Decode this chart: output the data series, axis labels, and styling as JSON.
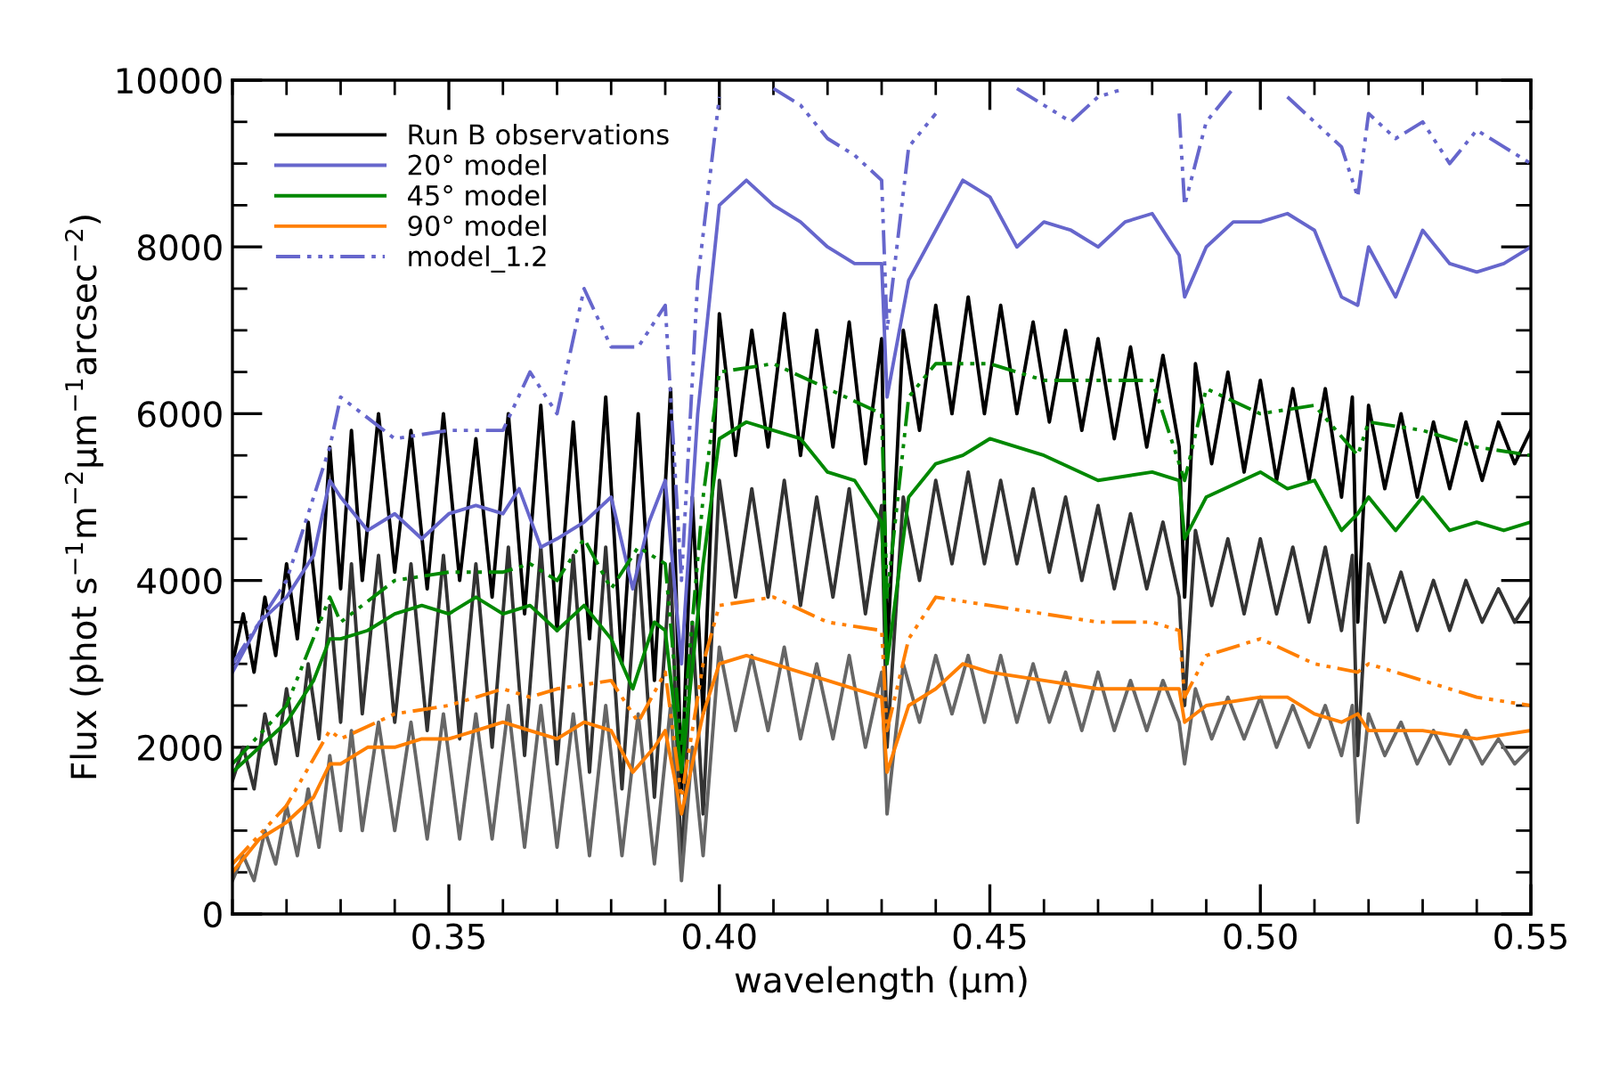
{
  "chart_data": {
    "type": "line",
    "xlabel": "wavelength (μm)",
    "ylabel": "Flux (phot s$^{−1}$m$^{−2}$μm$^{−1}$arcsec$^{−2}$)",
    "xlim": [
      0.31,
      0.55
    ],
    "ylim": [
      0,
      10000
    ],
    "xticks": [
      {
        "value": 0.35,
        "label": "0.35"
      },
      {
        "value": 0.4,
        "label": "0.40"
      },
      {
        "value": 0.45,
        "label": "0.45"
      },
      {
        "value": 0.5,
        "label": "0.50"
      },
      {
        "value": 0.55,
        "label": "0.55"
      }
    ],
    "yticks": [
      0,
      2000,
      4000,
      6000,
      8000,
      10000
    ],
    "grid": false,
    "legend": "top left",
    "marker": "none",
    "series": [
      {
        "name": "Run B observations",
        "color": "#000000",
        "line_style": "solid",
        "x": [
          0.31,
          0.312,
          0.314,
          0.316,
          0.318,
          0.32,
          0.322,
          0.324,
          0.326,
          0.328,
          0.33,
          0.332,
          0.334,
          0.337,
          0.34,
          0.343,
          0.346,
          0.349,
          0.352,
          0.355,
          0.358,
          0.361,
          0.364,
          0.367,
          0.37,
          0.373,
          0.376,
          0.379,
          0.382,
          0.385,
          0.388,
          0.391,
          0.393,
          0.395,
          0.397,
          0.4,
          0.403,
          0.406,
          0.409,
          0.412,
          0.415,
          0.418,
          0.421,
          0.424,
          0.427,
          0.43,
          0.431,
          0.434,
          0.437,
          0.44,
          0.443,
          0.446,
          0.449,
          0.452,
          0.455,
          0.458,
          0.461,
          0.464,
          0.467,
          0.47,
          0.473,
          0.476,
          0.479,
          0.482,
          0.485,
          0.486,
          0.488,
          0.491,
          0.494,
          0.497,
          0.5,
          0.503,
          0.506,
          0.509,
          0.512,
          0.515,
          0.517,
          0.518,
          0.52,
          0.523,
          0.526,
          0.529,
          0.532,
          0.535,
          0.538,
          0.541,
          0.544,
          0.547,
          0.55
        ],
        "values": [
          3000,
          3600,
          2900,
          3800,
          3100,
          4200,
          3300,
          4700,
          3500,
          5600,
          3900,
          5800,
          4000,
          6000,
          4100,
          5800,
          3900,
          6000,
          4000,
          5700,
          3800,
          6000,
          3600,
          6100,
          3400,
          5900,
          3300,
          6200,
          3000,
          6000,
          2800,
          6300,
          1500,
          5000,
          2400,
          7200,
          5500,
          7000,
          5600,
          7200,
          5500,
          7000,
          5600,
          7100,
          5400,
          6900,
          3100,
          7000,
          5800,
          7300,
          6000,
          7400,
          6000,
          7300,
          6000,
          7100,
          5900,
          7000,
          5800,
          6900,
          5700,
          6800,
          5600,
          6700,
          5600,
          3800,
          6600,
          5400,
          6500,
          5300,
          6400,
          5200,
          6300,
          5200,
          6300,
          5000,
          6200,
          3500,
          6100,
          5100,
          6000,
          5000,
          5900,
          5100,
          5900,
          5200,
          5900,
          5400,
          5800
        ]
      },
      {
        "color": "#333333",
        "line_style": "solid",
        "x": [
          0.31,
          0.312,
          0.314,
          0.316,
          0.318,
          0.32,
          0.322,
          0.324,
          0.326,
          0.328,
          0.33,
          0.332,
          0.334,
          0.337,
          0.34,
          0.343,
          0.346,
          0.349,
          0.352,
          0.355,
          0.358,
          0.361,
          0.364,
          0.367,
          0.37,
          0.373,
          0.376,
          0.379,
          0.382,
          0.385,
          0.388,
          0.391,
          0.393,
          0.395,
          0.397,
          0.4,
          0.403,
          0.406,
          0.409,
          0.412,
          0.415,
          0.418,
          0.421,
          0.424,
          0.427,
          0.43,
          0.431,
          0.434,
          0.437,
          0.44,
          0.443,
          0.446,
          0.449,
          0.452,
          0.455,
          0.458,
          0.461,
          0.464,
          0.467,
          0.47,
          0.473,
          0.476,
          0.479,
          0.482,
          0.485,
          0.486,
          0.488,
          0.491,
          0.494,
          0.497,
          0.5,
          0.503,
          0.506,
          0.509,
          0.512,
          0.515,
          0.517,
          0.518,
          0.52,
          0.523,
          0.526,
          0.529,
          0.532,
          0.535,
          0.538,
          0.541,
          0.544,
          0.547,
          0.55
        ],
        "values": [
          1600,
          2000,
          1500,
          2400,
          1800,
          2700,
          1900,
          3000,
          2100,
          3700,
          2300,
          4200,
          2400,
          4300,
          2300,
          4200,
          2200,
          4300,
          2100,
          4200,
          2000,
          4400,
          1900,
          4400,
          1800,
          4300,
          1700,
          4400,
          1500,
          4300,
          1400,
          4200,
          500,
          3500,
          1200,
          5200,
          3800,
          5100,
          3800,
          5200,
          3700,
          5000,
          3800,
          5100,
          3600,
          4900,
          2000,
          5000,
          4000,
          5200,
          4200,
          5300,
          4200,
          5200,
          4200,
          5100,
          4100,
          5000,
          4000,
          4900,
          3900,
          4800,
          3900,
          4700,
          3800,
          2500,
          4600,
          3700,
          4500,
          3600,
          4500,
          3600,
          4400,
          3500,
          4400,
          3400,
          4300,
          1900,
          4200,
          3500,
          4100,
          3400,
          4000,
          3400,
          4000,
          3500,
          3900,
          3500,
          3800
        ]
      },
      {
        "color": "#666666",
        "line_style": "solid",
        "x": [
          0.31,
          0.312,
          0.314,
          0.316,
          0.318,
          0.32,
          0.322,
          0.324,
          0.326,
          0.328,
          0.33,
          0.332,
          0.334,
          0.337,
          0.34,
          0.343,
          0.346,
          0.349,
          0.352,
          0.355,
          0.358,
          0.361,
          0.364,
          0.367,
          0.37,
          0.373,
          0.376,
          0.379,
          0.382,
          0.385,
          0.388,
          0.391,
          0.393,
          0.395,
          0.397,
          0.4,
          0.403,
          0.406,
          0.409,
          0.412,
          0.415,
          0.418,
          0.421,
          0.424,
          0.427,
          0.43,
          0.431,
          0.434,
          0.437,
          0.44,
          0.443,
          0.446,
          0.449,
          0.452,
          0.455,
          0.458,
          0.461,
          0.464,
          0.467,
          0.47,
          0.473,
          0.476,
          0.479,
          0.482,
          0.485,
          0.486,
          0.488,
          0.491,
          0.494,
          0.497,
          0.5,
          0.503,
          0.506,
          0.509,
          0.512,
          0.515,
          0.517,
          0.518,
          0.52,
          0.523,
          0.526,
          0.529,
          0.532,
          0.535,
          0.538,
          0.541,
          0.544,
          0.547,
          0.55
        ],
        "values": [
          400,
          700,
          400,
          1000,
          600,
          1300,
          700,
          1500,
          800,
          1900,
          1000,
          2200,
          1000,
          2300,
          1000,
          2300,
          900,
          2400,
          900,
          2400,
          900,
          2500,
          800,
          2500,
          800,
          2400,
          700,
          2500,
          700,
          2400,
          600,
          2500,
          400,
          2000,
          700,
          3200,
          2200,
          3100,
          2200,
          3200,
          2100,
          3000,
          2100,
          3100,
          2000,
          2900,
          1200,
          3000,
          2300,
          3100,
          2400,
          3100,
          2300,
          3100,
          2300,
          3000,
          2300,
          2900,
          2200,
          2900,
          2200,
          2800,
          2200,
          2800,
          2300,
          1800,
          2700,
          2100,
          2600,
          2100,
          2600,
          2000,
          2500,
          2000,
          2500,
          1900,
          2500,
          1100,
          2400,
          1900,
          2300,
          1800,
          2200,
          1800,
          2200,
          1800,
          2100,
          1800,
          2000
        ]
      },
      {
        "name": "20° model",
        "color": "#6666cc",
        "line_style": "solid",
        "x": [
          0.31,
          0.315,
          0.32,
          0.325,
          0.328,
          0.33,
          0.335,
          0.34,
          0.345,
          0.35,
          0.355,
          0.36,
          0.363,
          0.367,
          0.37,
          0.375,
          0.38,
          0.384,
          0.387,
          0.39,
          0.393,
          0.396,
          0.4,
          0.405,
          0.41,
          0.415,
          0.42,
          0.425,
          0.43,
          0.431,
          0.435,
          0.44,
          0.445,
          0.45,
          0.455,
          0.46,
          0.465,
          0.47,
          0.475,
          0.48,
          0.485,
          0.486,
          0.49,
          0.495,
          0.5,
          0.505,
          0.51,
          0.515,
          0.518,
          0.52,
          0.525,
          0.53,
          0.535,
          0.54,
          0.545,
          0.55
        ],
        "values": [
          2900,
          3500,
          3800,
          4300,
          5200,
          5000,
          4600,
          4800,
          4500,
          4800,
          4900,
          4800,
          5100,
          4400,
          4500,
          4700,
          5000,
          3900,
          4700,
          5200,
          3000,
          6000,
          8500,
          8800,
          8500,
          8300,
          8000,
          7800,
          7800,
          6200,
          7600,
          8200,
          8800,
          8600,
          8000,
          8300,
          8200,
          8000,
          8300,
          8400,
          7900,
          7400,
          8000,
          8300,
          8300,
          8400,
          8200,
          7400,
          7300,
          8000,
          7400,
          8200,
          7800,
          7700,
          7800,
          8000
        ]
      },
      {
        "name": "45° model",
        "color": "#008800",
        "line_style": "solid",
        "x": [
          0.31,
          0.315,
          0.32,
          0.325,
          0.328,
          0.33,
          0.335,
          0.34,
          0.345,
          0.35,
          0.355,
          0.36,
          0.365,
          0.37,
          0.375,
          0.38,
          0.384,
          0.388,
          0.39,
          0.393,
          0.397,
          0.4,
          0.405,
          0.41,
          0.415,
          0.42,
          0.425,
          0.43,
          0.431,
          0.435,
          0.44,
          0.445,
          0.45,
          0.46,
          0.47,
          0.48,
          0.485,
          0.486,
          0.49,
          0.5,
          0.505,
          0.51,
          0.515,
          0.518,
          0.52,
          0.525,
          0.53,
          0.535,
          0.54,
          0.545,
          0.55
        ],
        "values": [
          1700,
          2000,
          2300,
          2800,
          3300,
          3300,
          3400,
          3600,
          3700,
          3600,
          3800,
          3600,
          3700,
          3400,
          3700,
          3300,
          2700,
          3500,
          3400,
          1700,
          4200,
          5700,
          5900,
          5800,
          5700,
          5300,
          5200,
          4700,
          3000,
          5000,
          5400,
          5500,
          5700,
          5500,
          5200,
          5300,
          5200,
          4500,
          5000,
          5300,
          5100,
          5200,
          4600,
          4800,
          5000,
          4600,
          5000,
          4600,
          4700,
          4600,
          4700
        ]
      },
      {
        "name": "90° model",
        "color": "#ff7f00",
        "line_style": "solid",
        "x": [
          0.31,
          0.315,
          0.32,
          0.325,
          0.328,
          0.33,
          0.335,
          0.34,
          0.345,
          0.35,
          0.355,
          0.36,
          0.365,
          0.37,
          0.375,
          0.38,
          0.384,
          0.388,
          0.39,
          0.393,
          0.397,
          0.4,
          0.405,
          0.41,
          0.415,
          0.42,
          0.425,
          0.43,
          0.431,
          0.435,
          0.44,
          0.445,
          0.45,
          0.46,
          0.47,
          0.48,
          0.485,
          0.486,
          0.49,
          0.5,
          0.505,
          0.51,
          0.515,
          0.518,
          0.52,
          0.53,
          0.54,
          0.55
        ],
        "values": [
          500,
          900,
          1100,
          1400,
          1800,
          1800,
          2000,
          2000,
          2100,
          2100,
          2200,
          2300,
          2200,
          2100,
          2300,
          2200,
          1700,
          2000,
          2200,
          1200,
          2400,
          3000,
          3100,
          3000,
          2900,
          2800,
          2700,
          2600,
          1700,
          2500,
          2700,
          3000,
          2900,
          2800,
          2700,
          2700,
          2700,
          2300,
          2500,
          2600,
          2600,
          2400,
          2300,
          2400,
          2200,
          2200,
          2100,
          2200
        ]
      },
      {
        "name": "model_1.2",
        "color": "#6666cc",
        "line_style": "dashed",
        "x": [
          0.31,
          0.32,
          0.328,
          0.33,
          0.34,
          0.35,
          0.36,
          0.365,
          0.37,
          0.375,
          0.38,
          0.385,
          0.39,
          0.393,
          0.396,
          0.4,
          0.405,
          0.41,
          0.415,
          0.42,
          0.425,
          0.43,
          0.431,
          0.435,
          0.44,
          0.445,
          0.45,
          0.455,
          0.46,
          0.465,
          0.47,
          0.475,
          0.48,
          0.485,
          0.486,
          0.49,
          0.495,
          0.5,
          0.505,
          0.51,
          0.515,
          0.518,
          0.52,
          0.525,
          0.53,
          0.535,
          0.54,
          0.545,
          0.55
        ],
        "values": [
          3000,
          4000,
          5600,
          6200,
          5700,
          5800,
          5800,
          6500,
          6000,
          7500,
          6800,
          6800,
          7300,
          4000,
          7600,
          9800,
          null,
          9900,
          9700,
          9300,
          9100,
          8800,
          7000,
          9200,
          9600,
          null,
          null,
          9900,
          9700,
          9500,
          9800,
          9900,
          null,
          9600,
          8500,
          9500,
          9900,
          null,
          9800,
          9500,
          9200,
          8600,
          9600,
          9300,
          9500,
          9000,
          9400,
          9200,
          9000
        ]
      },
      {
        "color": "#008800",
        "line_style": "dashed",
        "x": [
          0.31,
          0.32,
          0.328,
          0.33,
          0.34,
          0.35,
          0.36,
          0.365,
          0.37,
          0.375,
          0.38,
          0.385,
          0.39,
          0.393,
          0.397,
          0.4,
          0.41,
          0.42,
          0.43,
          0.431,
          0.435,
          0.44,
          0.45,
          0.46,
          0.47,
          0.48,
          0.486,
          0.49,
          0.5,
          0.51,
          0.518,
          0.52,
          0.53,
          0.54,
          0.55
        ],
        "values": [
          1800,
          2500,
          3800,
          3500,
          4000,
          4100,
          4100,
          4200,
          4000,
          4500,
          3900,
          4400,
          4200,
          2000,
          5000,
          6500,
          6600,
          6300,
          6000,
          3800,
          6200,
          6600,
          6600,
          6400,
          6400,
          6400,
          5200,
          6300,
          6000,
          6100,
          5500,
          5900,
          5800,
          5600,
          5500
        ]
      },
      {
        "color": "#ff7f00",
        "line_style": "dashed",
        "x": [
          0.31,
          0.32,
          0.328,
          0.33,
          0.34,
          0.35,
          0.36,
          0.365,
          0.37,
          0.38,
          0.385,
          0.39,
          0.393,
          0.397,
          0.4,
          0.41,
          0.42,
          0.43,
          0.431,
          0.435,
          0.44,
          0.45,
          0.46,
          0.47,
          0.48,
          0.485,
          0.486,
          0.49,
          0.5,
          0.51,
          0.518,
          0.52,
          0.53,
          0.54,
          0.55
        ],
        "values": [
          600,
          1300,
          2200,
          2100,
          2400,
          2500,
          2700,
          2600,
          2700,
          2800,
          2300,
          2900,
          1400,
          3000,
          3700,
          3800,
          3500,
          3400,
          2200,
          3300,
          3800,
          3700,
          3600,
          3500,
          3500,
          3400,
          2600,
          3100,
          3300,
          3000,
          2900,
          3000,
          2800,
          2600,
          2500
        ]
      }
    ]
  }
}
